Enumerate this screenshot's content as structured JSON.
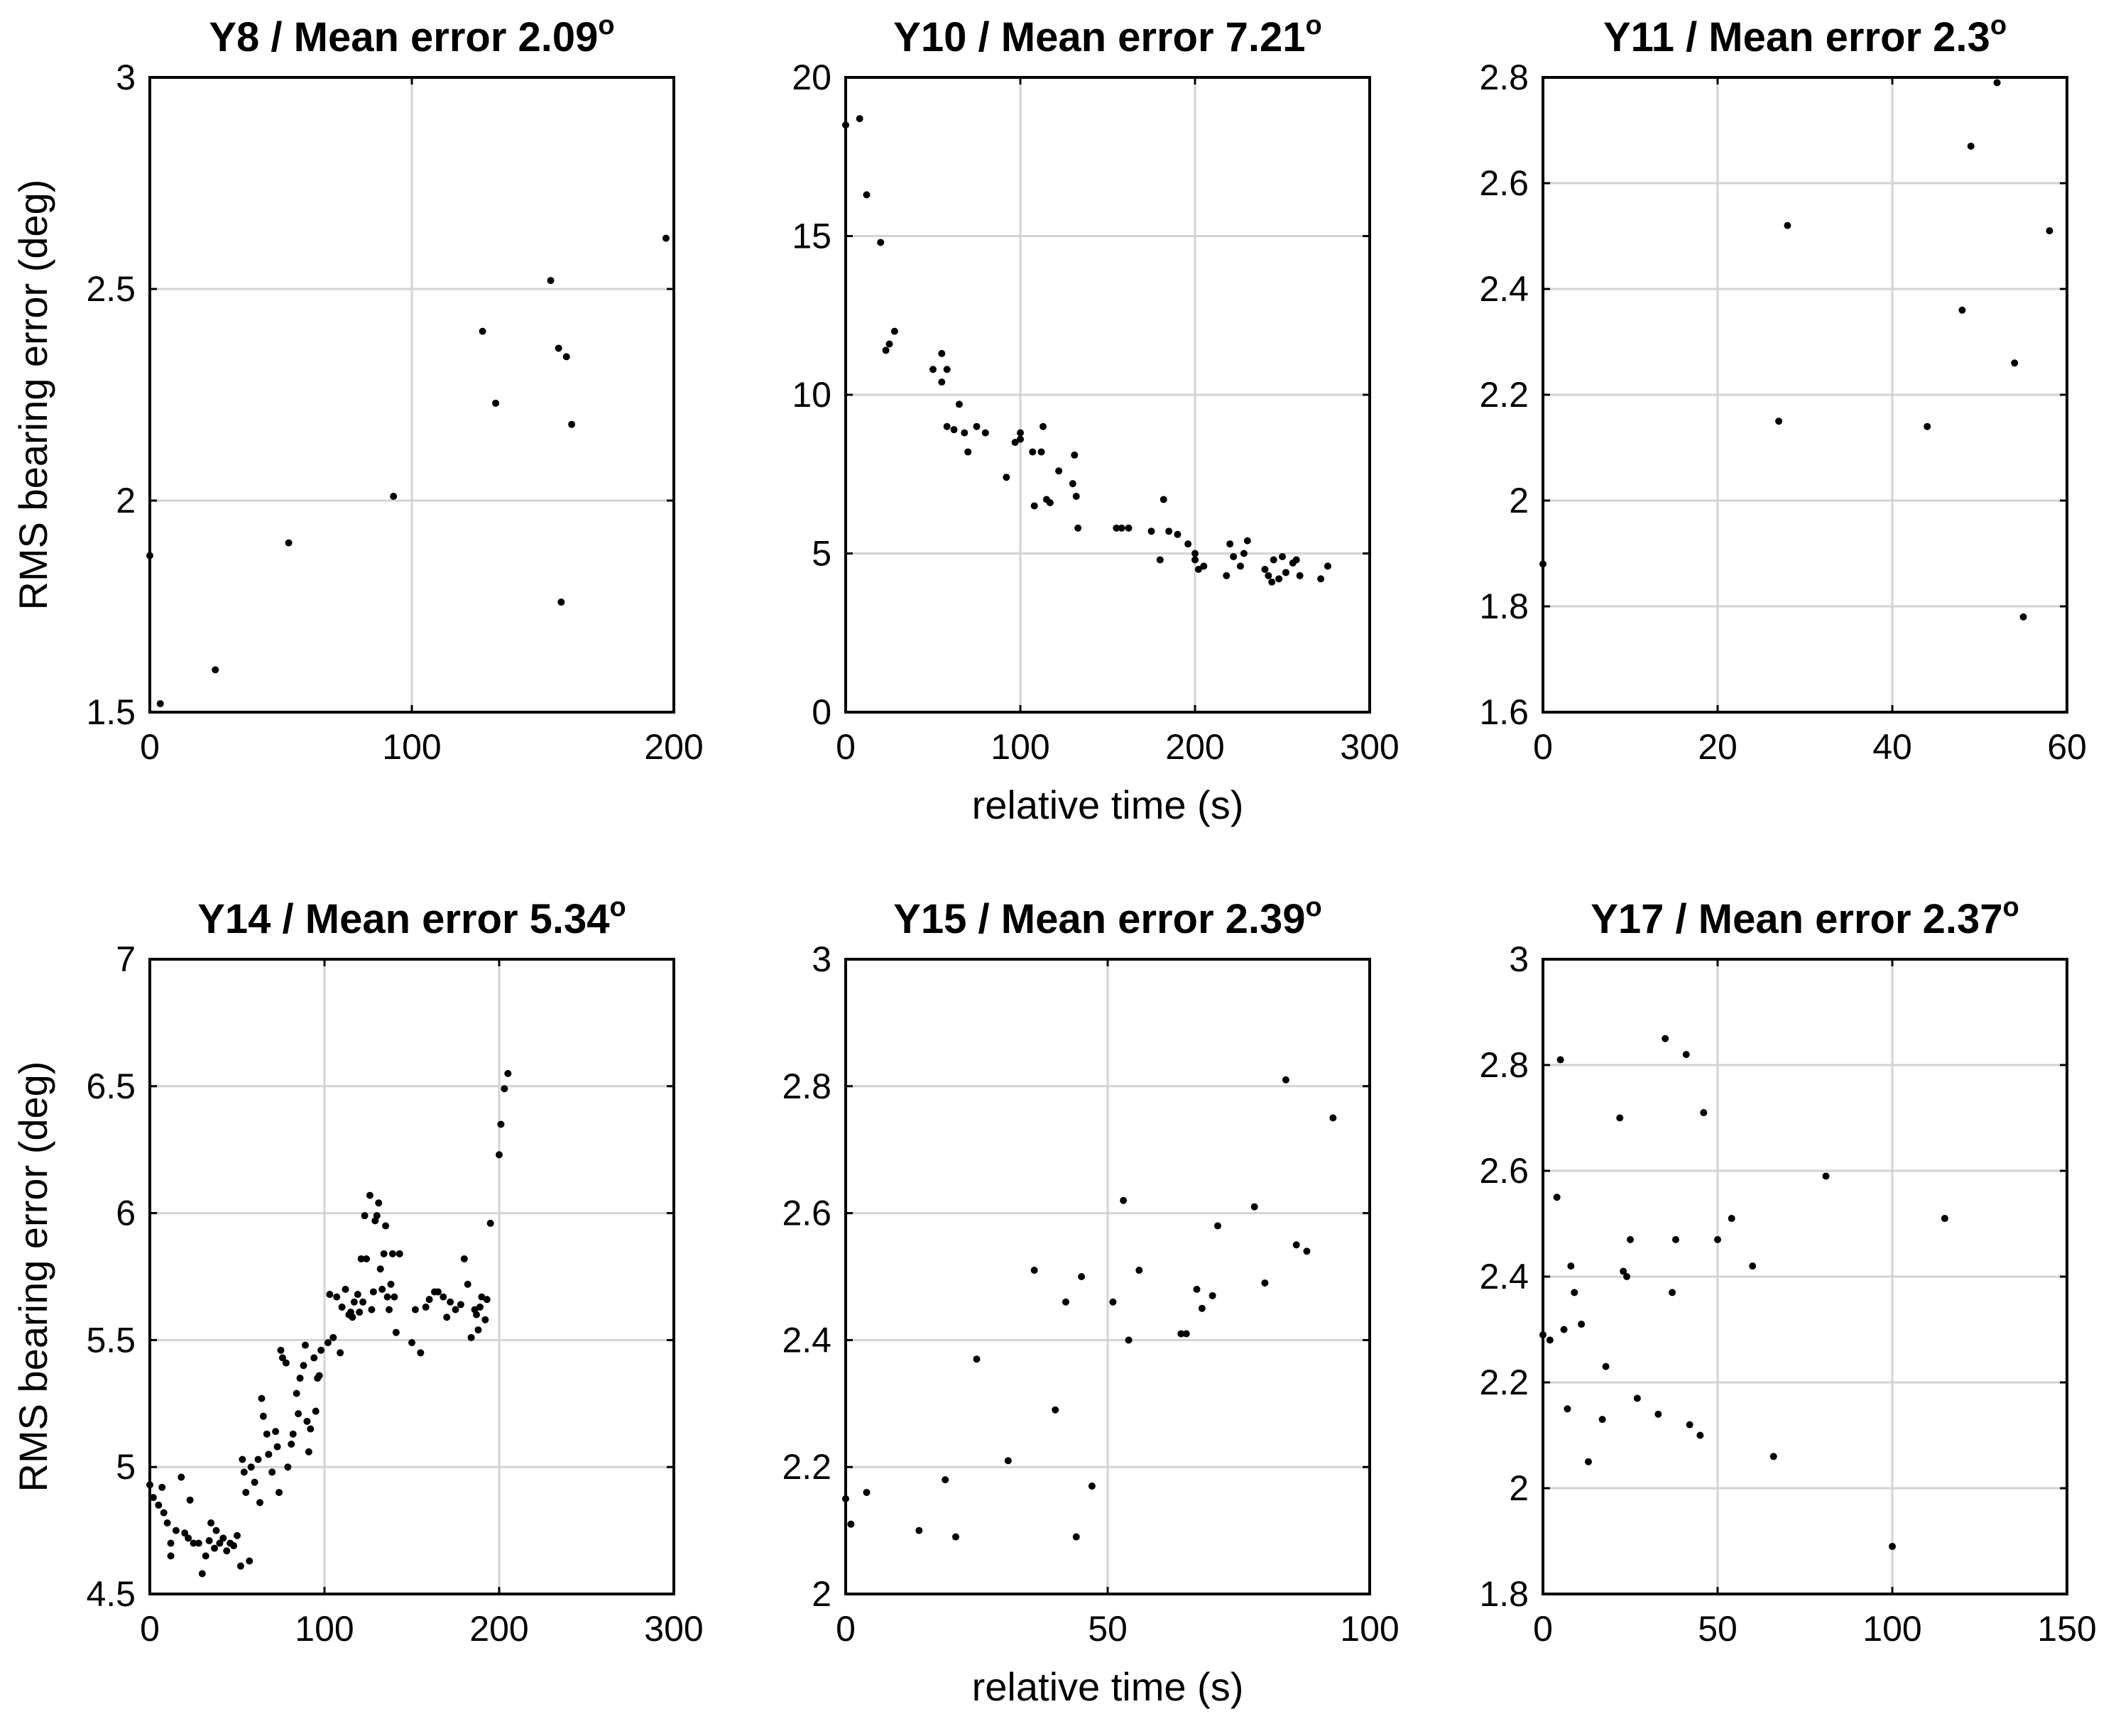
{
  "chart_data": [
    {
      "type": "scatter",
      "title": "Y8 / Mean error 2.09",
      "title_main": "Y8 / Mean error 2.09",
      "title_sup": "o",
      "xlabel": "",
      "ylabel": "RMS bearing error (deg)",
      "xlim": [
        0,
        200
      ],
      "ylim": [
        1.5,
        3
      ],
      "xticks": [
        0,
        100,
        200
      ],
      "yticks": [
        1.5,
        2,
        2.5,
        3
      ],
      "xtick_labels": [
        "0",
        "100",
        "200"
      ],
      "ytick_labels": [
        "1.5",
        "2",
        "2.5",
        "3"
      ],
      "grid": true,
      "points": [
        [
          0,
          1.87
        ],
        [
          4,
          1.52
        ],
        [
          25,
          1.6
        ],
        [
          53,
          1.9
        ],
        [
          93,
          2.01
        ],
        [
          127,
          2.4
        ],
        [
          132,
          2.23
        ],
        [
          153,
          2.52
        ],
        [
          156,
          2.36
        ],
        [
          157,
          1.76
        ],
        [
          159,
          2.34
        ],
        [
          161,
          2.18
        ],
        [
          197,
          2.62
        ]
      ]
    },
    {
      "type": "scatter",
      "title": "Y10 / Mean error 7.21",
      "title_main": "Y10 / Mean error 7.21",
      "title_sup": "o",
      "xlabel": "relative time (s)",
      "ylabel": "",
      "xlim": [
        0,
        300
      ],
      "ylim": [
        0,
        20
      ],
      "xticks": [
        0,
        100,
        200,
        300
      ],
      "yticks": [
        0,
        5,
        10,
        15,
        20
      ],
      "xtick_labels": [
        "0",
        "100",
        "200",
        "300"
      ],
      "ytick_labels": [
        "0",
        "5",
        "10",
        "15",
        "20"
      ],
      "grid": true,
      "points": [
        [
          0,
          18.5
        ],
        [
          8,
          18.7
        ],
        [
          12,
          16.3
        ],
        [
          20,
          14.8
        ],
        [
          23,
          11.4
        ],
        [
          25,
          11.6
        ],
        [
          28,
          12
        ],
        [
          50,
          10.8
        ],
        [
          55,
          11.3
        ],
        [
          55,
          10.4
        ],
        [
          58,
          10.8
        ],
        [
          58,
          9
        ],
        [
          62,
          8.9
        ],
        [
          65,
          9.7
        ],
        [
          68,
          8.8
        ],
        [
          70,
          8.2
        ],
        [
          75,
          9
        ],
        [
          80,
          8.8
        ],
        [
          92,
          7.4
        ],
        [
          97,
          8.5
        ],
        [
          100,
          8.8
        ],
        [
          100,
          8.6
        ],
        [
          107,
          8.2
        ],
        [
          108,
          6.5
        ],
        [
          112,
          8.2
        ],
        [
          113,
          9
        ],
        [
          115,
          6.7
        ],
        [
          117,
          6.6
        ],
        [
          122,
          7.6
        ],
        [
          130,
          7.2
        ],
        [
          131,
          8.1
        ],
        [
          132,
          6.8
        ],
        [
          133,
          5.8
        ],
        [
          155,
          5.8
        ],
        [
          158,
          5.8
        ],
        [
          162,
          5.8
        ],
        [
          175,
          5.7
        ],
        [
          180,
          4.8
        ],
        [
          182,
          6.7
        ],
        [
          185,
          5.7
        ],
        [
          190,
          5.6
        ],
        [
          196,
          5.3
        ],
        [
          200,
          4.8
        ],
        [
          200,
          5
        ],
        [
          202,
          4.5
        ],
        [
          205,
          4.6
        ],
        [
          218,
          4.3
        ],
        [
          220,
          5.3
        ],
        [
          222,
          4.9
        ],
        [
          226,
          4.6
        ],
        [
          228,
          5
        ],
        [
          230,
          5.4
        ],
        [
          240,
          4.5
        ],
        [
          242,
          4.3
        ],
        [
          244,
          4.1
        ],
        [
          245,
          4.8
        ],
        [
          248,
          4.2
        ],
        [
          250,
          4.9
        ],
        [
          252,
          4.4
        ],
        [
          256,
          4.7
        ],
        [
          258,
          4.8
        ],
        [
          260,
          4.3
        ],
        [
          272,
          4.2
        ],
        [
          276,
          4.6
        ]
      ]
    },
    {
      "type": "scatter",
      "title": "Y11 / Mean error 2.3",
      "title_main": "Y11 / Mean error 2.3",
      "title_sup": "o",
      "xlabel": "",
      "ylabel": "",
      "xlim": [
        0,
        60
      ],
      "ylim": [
        1.6,
        2.8
      ],
      "xticks": [
        0,
        20,
        40,
        60
      ],
      "yticks": [
        1.6,
        1.8,
        2,
        2.2,
        2.4,
        2.6,
        2.8
      ],
      "xtick_labels": [
        "0",
        "20",
        "40",
        "60"
      ],
      "ytick_labels": [
        "1.6",
        "1.8",
        "2",
        "2.2",
        "2.4",
        "2.6",
        "2.8"
      ],
      "grid": true,
      "points": [
        [
          0,
          1.88
        ],
        [
          27,
          2.15
        ],
        [
          28,
          2.52
        ],
        [
          44,
          2.14
        ],
        [
          48,
          2.36
        ],
        [
          49,
          2.67
        ],
        [
          52,
          2.79
        ],
        [
          54,
          2.26
        ],
        [
          55,
          1.78
        ],
        [
          58,
          2.51
        ]
      ]
    },
    {
      "type": "scatter",
      "title": "Y14 / Mean error 5.34",
      "title_main": "Y14 / Mean error 5.34",
      "title_sup": "o",
      "xlabel": "",
      "ylabel": "RMS bearing error (deg)",
      "xlim": [
        0,
        300
      ],
      "ylim": [
        4.5,
        7
      ],
      "xticks": [
        0,
        100,
        200,
        300
      ],
      "yticks": [
        4.5,
        5,
        5.5,
        6,
        6.5,
        7
      ],
      "xtick_labels": [
        "0",
        "100",
        "200",
        "300"
      ],
      "ytick_labels": [
        "4.5",
        "5",
        "5.5",
        "6",
        "6.5",
        "7"
      ],
      "grid": true,
      "points": [
        [
          0,
          4.93
        ],
        [
          2,
          4.88
        ],
        [
          5,
          4.85
        ],
        [
          7,
          4.92
        ],
        [
          8,
          4.82
        ],
        [
          10,
          4.78
        ],
        [
          12,
          4.7
        ],
        [
          12,
          4.65
        ],
        [
          15,
          4.75
        ],
        [
          18,
          4.96
        ],
        [
          20,
          4.74
        ],
        [
          22,
          4.72
        ],
        [
          23,
          4.87
        ],
        [
          25,
          4.7
        ],
        [
          28,
          4.7
        ],
        [
          30,
          4.58
        ],
        [
          32,
          4.65
        ],
        [
          34,
          4.71
        ],
        [
          35,
          4.78
        ],
        [
          37,
          4.68
        ],
        [
          38,
          4.75
        ],
        [
          40,
          4.7
        ],
        [
          42,
          4.72
        ],
        [
          44,
          4.67
        ],
        [
          46,
          4.7
        ],
        [
          48,
          4.69
        ],
        [
          50,
          4.73
        ],
        [
          52,
          4.61
        ],
        [
          53,
          5.03
        ],
        [
          54,
          4.98
        ],
        [
          55,
          4.9
        ],
        [
          57,
          4.63
        ],
        [
          58,
          5.0
        ],
        [
          60,
          4.94
        ],
        [
          62,
          5.03
        ],
        [
          63,
          4.86
        ],
        [
          64,
          5.27
        ],
        [
          65,
          5.2
        ],
        [
          67,
          5.13
        ],
        [
          68,
          5.05
        ],
        [
          70,
          4.98
        ],
        [
          72,
          5.14
        ],
        [
          73,
          5.08
        ],
        [
          74,
          4.9
        ],
        [
          75,
          5.46
        ],
        [
          76,
          5.43
        ],
        [
          78,
          5.41
        ],
        [
          79,
          5.0
        ],
        [
          81,
          5.09
        ],
        [
          82,
          5.13
        ],
        [
          84,
          5.29
        ],
        [
          85,
          5.21
        ],
        [
          86,
          5.35
        ],
        [
          88,
          5.4
        ],
        [
          89,
          5.48
        ],
        [
          90,
          5.18
        ],
        [
          91,
          5.06
        ],
        [
          92,
          5.15
        ],
        [
          94,
          5.43
        ],
        [
          95,
          5.22
        ],
        [
          96,
          5.35
        ],
        [
          97,
          5.36
        ],
        [
          98,
          5.46
        ],
        [
          102,
          5.49
        ],
        [
          103,
          5.68
        ],
        [
          105,
          5.51
        ],
        [
          107,
          5.67
        ],
        [
          109,
          5.45
        ],
        [
          110,
          5.63
        ],
        [
          112,
          5.7
        ],
        [
          114,
          5.6
        ],
        [
          115,
          5.61
        ],
        [
          116,
          5.59
        ],
        [
          117,
          5.65
        ],
        [
          119,
          5.68
        ],
        [
          120,
          5.61
        ],
        [
          121,
          5.82
        ],
        [
          122,
          5.65
        ],
        [
          123,
          5.99
        ],
        [
          124,
          5.82
        ],
        [
          126,
          6.07
        ],
        [
          127,
          5.62
        ],
        [
          128,
          5.69
        ],
        [
          129,
          5.97
        ],
        [
          130,
          5.99
        ],
        [
          131,
          6.04
        ],
        [
          132,
          5.78
        ],
        [
          133,
          5.7
        ],
        [
          134,
          5.84
        ],
        [
          135,
          5.95
        ],
        [
          136,
          5.67
        ],
        [
          137,
          5.62
        ],
        [
          138,
          5.72
        ],
        [
          139,
          5.84
        ],
        [
          140,
          5.67
        ],
        [
          141,
          5.53
        ],
        [
          143,
          5.84
        ],
        [
          150,
          5.49
        ],
        [
          152,
          5.62
        ],
        [
          155,
          5.45
        ],
        [
          158,
          5.63
        ],
        [
          160,
          5.66
        ],
        [
          163,
          5.69
        ],
        [
          165,
          5.69
        ],
        [
          168,
          5.67
        ],
        [
          170,
          5.59
        ],
        [
          172,
          5.65
        ],
        [
          175,
          5.62
        ],
        [
          178,
          5.64
        ],
        [
          180,
          5.82
        ],
        [
          182,
          5.72
        ],
        [
          184,
          5.51
        ],
        [
          186,
          5.62
        ],
        [
          187,
          5.6
        ],
        [
          188,
          5.54
        ],
        [
          189,
          5.63
        ],
        [
          190,
          5.67
        ],
        [
          192,
          5.58
        ],
        [
          193,
          5.66
        ],
        [
          195,
          5.96
        ],
        [
          200,
          6.23
        ],
        [
          201,
          6.35
        ],
        [
          203,
          6.49
        ],
        [
          205,
          6.55
        ]
      ]
    },
    {
      "type": "scatter",
      "title": "Y15 / Mean error 2.39",
      "title_main": "Y15 / Mean error 2.39",
      "title_sup": "o",
      "xlabel": "relative time (s)",
      "ylabel": "",
      "xlim": [
        0,
        100
      ],
      "ylim": [
        2,
        3
      ],
      "xticks": [
        0,
        50,
        100
      ],
      "yticks": [
        2,
        2.2,
        2.4,
        2.6,
        2.8,
        3
      ],
      "xtick_labels": [
        "0",
        "50",
        "100"
      ],
      "ytick_labels": [
        "2",
        "2.2",
        "2.4",
        "2.6",
        "2.8",
        "3"
      ],
      "grid": true,
      "points": [
        [
          0,
          2.15
        ],
        [
          1,
          2.11
        ],
        [
          4,
          2.16
        ],
        [
          14,
          2.1
        ],
        [
          19,
          2.18
        ],
        [
          21,
          2.09
        ],
        [
          25,
          2.37
        ],
        [
          31,
          2.21
        ],
        [
          36,
          2.51
        ],
        [
          40,
          2.29
        ],
        [
          42,
          2.46
        ],
        [
          44,
          2.09
        ],
        [
          45,
          2.5
        ],
        [
          47,
          2.17
        ],
        [
          51,
          2.46
        ],
        [
          53,
          2.62
        ],
        [
          54,
          2.4
        ],
        [
          56,
          2.51
        ],
        [
          64,
          2.41
        ],
        [
          65,
          2.41
        ],
        [
          67,
          2.48
        ],
        [
          68,
          2.45
        ],
        [
          70,
          2.47
        ],
        [
          71,
          2.58
        ],
        [
          78,
          2.61
        ],
        [
          80,
          2.49
        ],
        [
          84,
          2.81
        ],
        [
          86,
          2.55
        ],
        [
          88,
          2.54
        ],
        [
          93,
          2.75
        ]
      ]
    },
    {
      "type": "scatter",
      "title": "Y17 / Mean error 2.37",
      "title_main": "Y17 / Mean error 2.37",
      "title_sup": "o",
      "xlabel": "",
      "ylabel": "",
      "xlim": [
        0,
        150
      ],
      "ylim": [
        1.8,
        3
      ],
      "xticks": [
        0,
        50,
        100,
        150
      ],
      "yticks": [
        1.8,
        2,
        2.2,
        2.4,
        2.6,
        2.8,
        3
      ],
      "xtick_labels": [
        "0",
        "50",
        "100",
        "150"
      ],
      "ytick_labels": [
        "1.8",
        "2",
        "2.2",
        "2.4",
        "2.6",
        "2.8",
        "3"
      ],
      "grid": true,
      "points": [
        [
          0,
          2.29
        ],
        [
          2,
          2.28
        ],
        [
          4,
          2.55
        ],
        [
          5,
          2.81
        ],
        [
          6,
          2.3
        ],
        [
          7,
          2.15
        ],
        [
          8,
          2.42
        ],
        [
          9,
          2.37
        ],
        [
          11,
          2.31
        ],
        [
          13,
          2.05
        ],
        [
          17,
          2.13
        ],
        [
          18,
          2.23
        ],
        [
          22,
          2.7
        ],
        [
          23,
          2.41
        ],
        [
          24,
          2.4
        ],
        [
          25,
          2.47
        ],
        [
          27,
          2.17
        ],
        [
          33,
          2.14
        ],
        [
          35,
          2.85
        ],
        [
          37,
          2.37
        ],
        [
          38,
          2.47
        ],
        [
          41,
          2.82
        ],
        [
          42,
          2.12
        ],
        [
          45,
          2.1
        ],
        [
          46,
          2.71
        ],
        [
          50,
          2.47
        ],
        [
          54,
          2.51
        ],
        [
          60,
          2.42
        ],
        [
          66,
          2.06
        ],
        [
          81,
          2.59
        ],
        [
          100,
          1.89
        ],
        [
          115,
          2.51
        ]
      ]
    }
  ]
}
